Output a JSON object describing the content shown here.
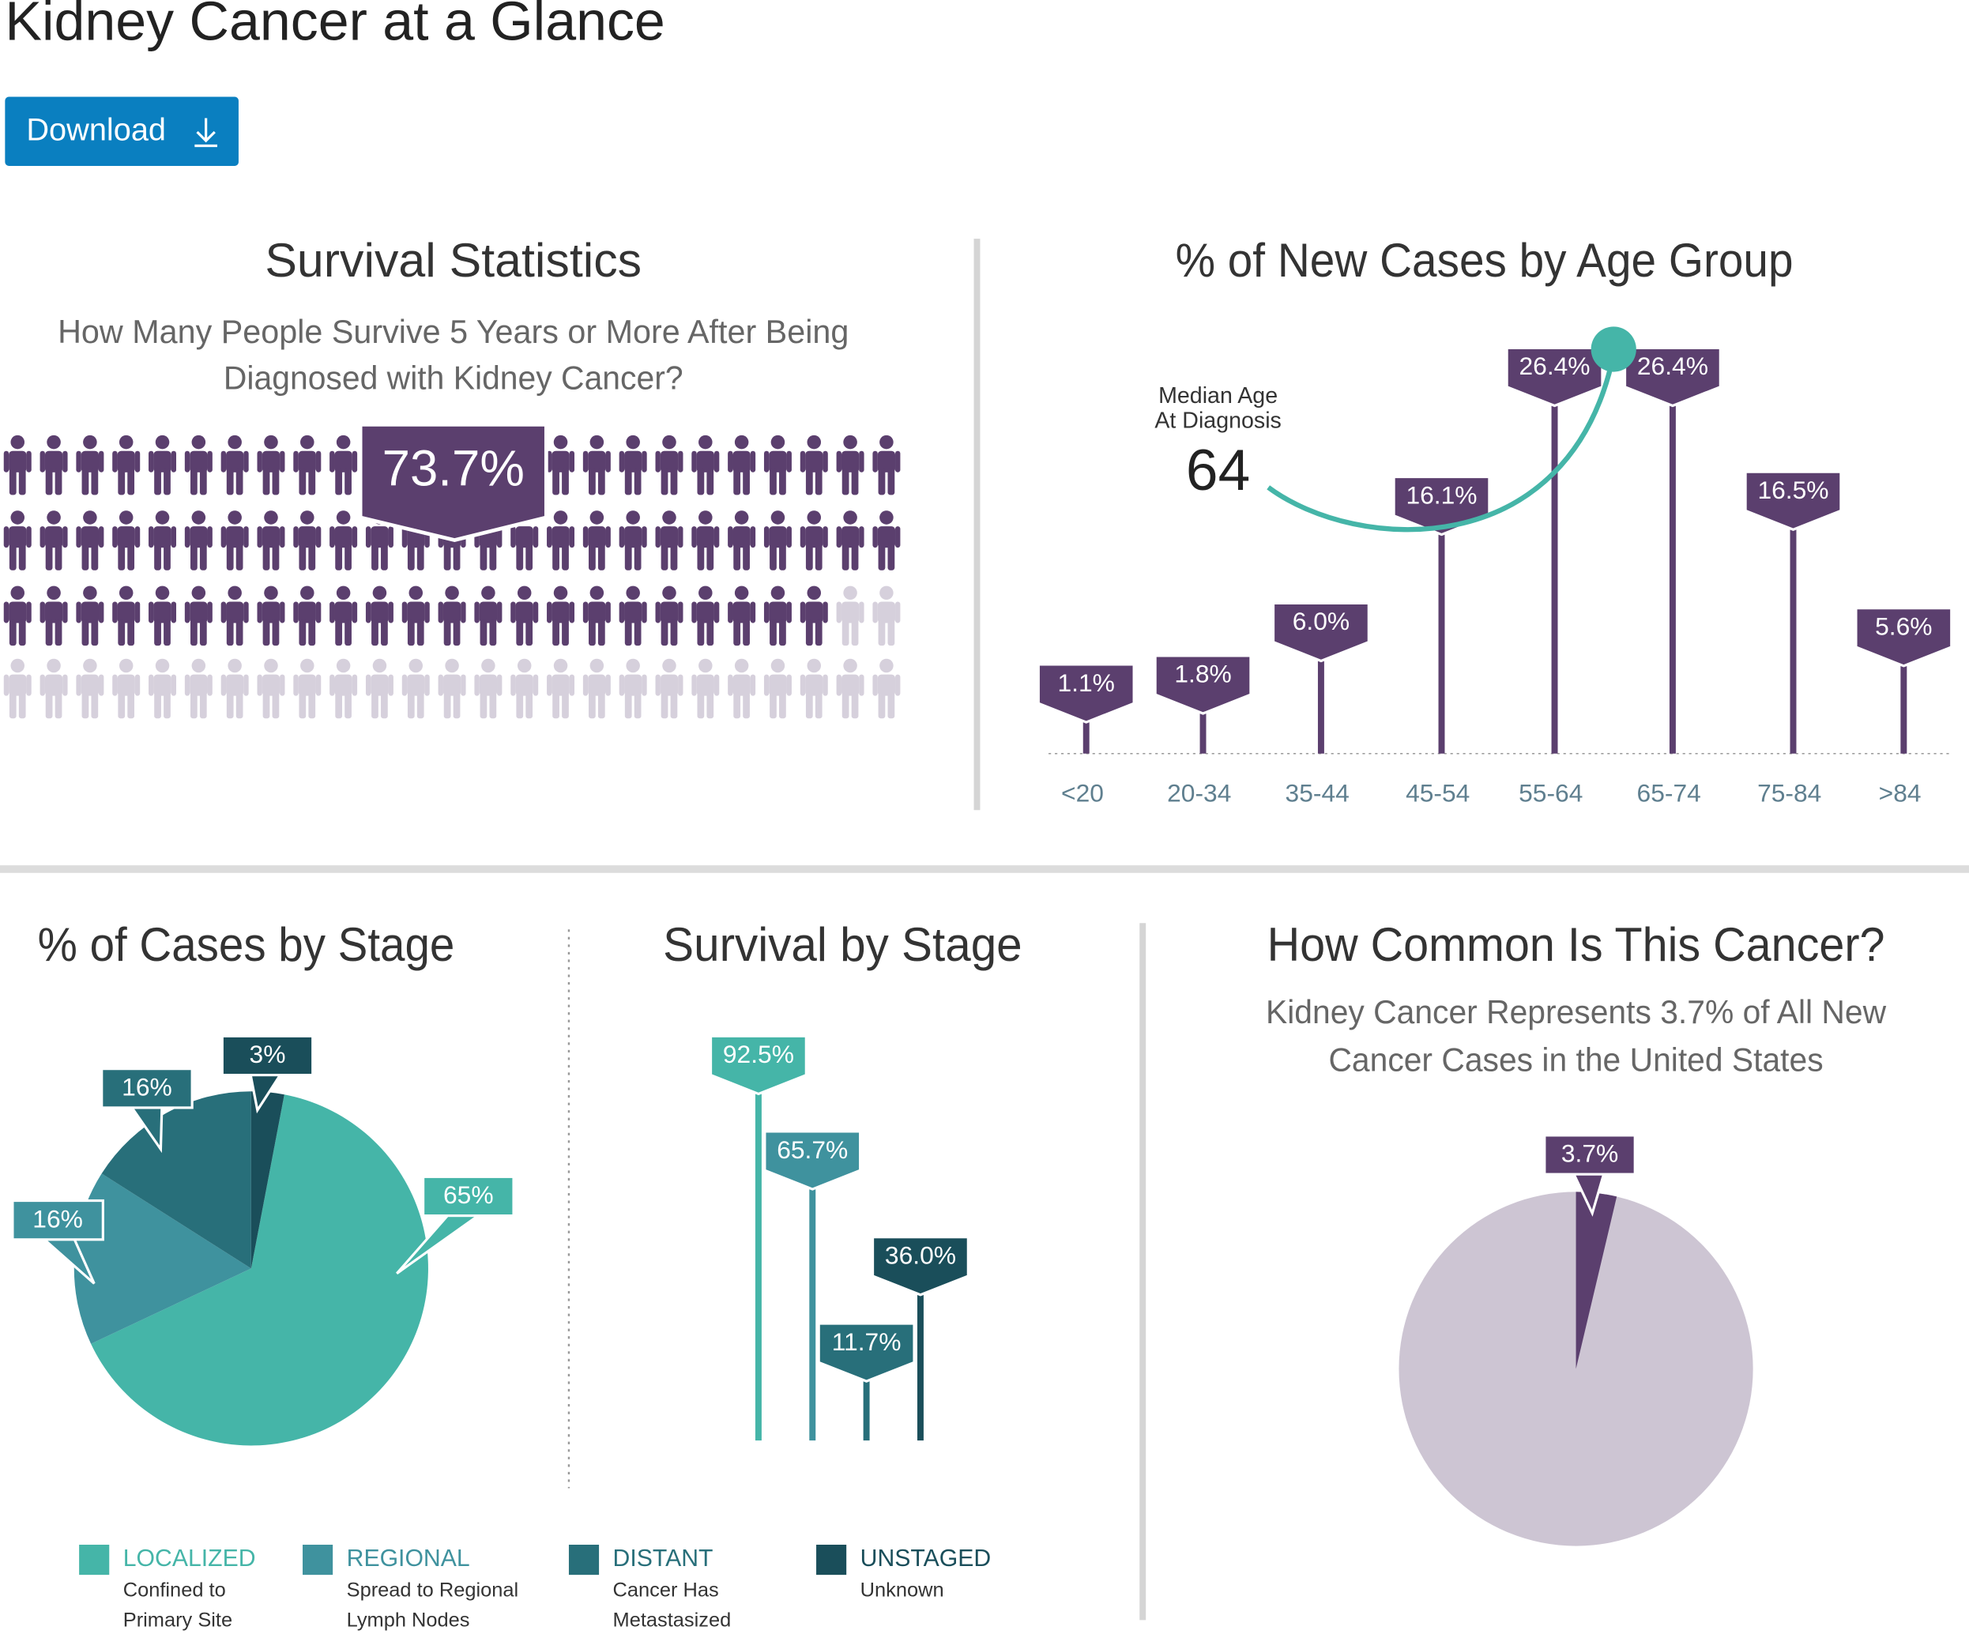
{
  "title": "Kidney Cancer at a Glance",
  "download": "Download",
  "chart_data": [
    {
      "type": "pictograph",
      "title": "Survival Statistics",
      "subtitle": [
        "How Many People Survive 5 Years or More After Being",
        "Diagnosed with Kidney Cancer?"
      ],
      "value": 73.7,
      "value_label": "73.7%",
      "color": "#5b3f6e",
      "empty_color": "#d6d0dc"
    },
    {
      "type": "lollipop",
      "title": "% of New Cases by Age Group",
      "categories": [
        "<20",
        "20-34",
        "35-44",
        "45-54",
        "55-64",
        "65-74",
        "75-84",
        ">84"
      ],
      "values": [
        1.1,
        1.8,
        6.0,
        16.1,
        26.4,
        26.4,
        16.5,
        5.6
      ],
      "value_labels": [
        "1.1%",
        "1.8%",
        "6.0%",
        "16.1%",
        "26.4%",
        "26.4%",
        "16.5%",
        "5.6%"
      ],
      "color": "#5b3f6e",
      "annotation": {
        "text": [
          "Median Age",
          "At Diagnosis"
        ],
        "value": 64,
        "color": "#45b5a8"
      }
    },
    {
      "type": "pie",
      "title": "% of Cases by Stage",
      "categories": [
        "LOCALIZED",
        "REGIONAL",
        "DISTANT",
        "UNSTAGED"
      ],
      "descriptions": [
        [
          "Confined to",
          "Primary Site"
        ],
        [
          "Spread to Regional",
          "Lymph Nodes"
        ],
        [
          "Cancer Has",
          "Metastasized"
        ],
        [
          "Unknown"
        ]
      ],
      "values": [
        65,
        16,
        16,
        3
      ],
      "value_labels": [
        "65%",
        "16%",
        "16%",
        "3%"
      ],
      "colors": [
        "#45b5a8",
        "#3f929e",
        "#286f7a",
        "#1a4e5a"
      ]
    },
    {
      "type": "lollipop",
      "title": "Survival by Stage",
      "values": [
        92.5,
        65.7,
        11.7,
        36.0
      ],
      "value_labels": [
        "92.5%",
        "65.7%",
        "11.7%",
        "36.0%"
      ],
      "colors": [
        "#45b5a8",
        "#3f929e",
        "#286f7a",
        "#1a4e5a"
      ]
    },
    {
      "type": "pie",
      "title": "How Common Is This Cancer?",
      "subtitle": [
        "Kidney Cancer Represents 3.7% of All New",
        "Cancer Cases in the United States"
      ],
      "values": [
        3.7
      ],
      "value_labels": [
        "3.7%"
      ],
      "colors": [
        "#5b3f6e"
      ],
      "background": "#cdc5d3"
    }
  ]
}
